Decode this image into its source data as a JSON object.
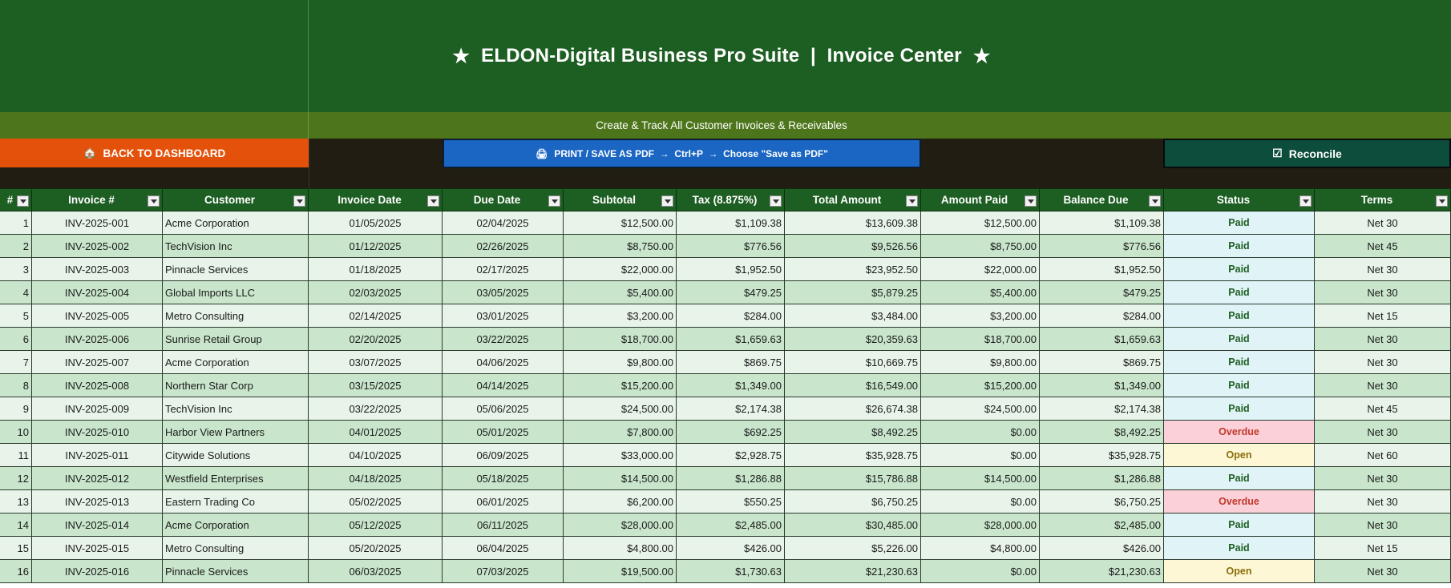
{
  "header": {
    "title": "ELDON-Digital Business Pro Suite  |  Invoice Center",
    "star": "★",
    "subtitle": "Create & Track All Customer Invoices & Receivables"
  },
  "buttons": {
    "back": "BACK TO DASHBOARD",
    "back_icon": "🏠",
    "print": "PRINT / SAVE AS PDF  →  Ctrl+P  →  Choose \"Save as PDF\"",
    "print_icon": "🖨",
    "reconcile": "Reconcile",
    "reconcile_icon": "☑"
  },
  "colors": {
    "banner": "#1d5e22",
    "subband": "#4d761c",
    "back_button": "#e4510a",
    "print_button": "#1a66c2",
    "reconcile_button": "#0d4d3c",
    "status_paid": "#1d5e22",
    "status_overdue": "#c0392b",
    "status_open": "#8a6d08"
  },
  "table": {
    "columns": [
      "#",
      "Invoice #",
      "Customer",
      "Invoice Date",
      "Due Date",
      "Subtotal",
      "Tax (8.875%)",
      "Total Amount",
      "Amount Paid",
      "Balance Due",
      "Status",
      "Terms"
    ],
    "rows": [
      [
        "1",
        "INV-2025-001",
        "Acme Corporation",
        "01/05/2025",
        "02/04/2025",
        "$12,500.00",
        "$1,109.38",
        "$13,609.38",
        "$12,500.00",
        "$1,109.38",
        "Paid",
        "Net 30"
      ],
      [
        "2",
        "INV-2025-002",
        "TechVision Inc",
        "01/12/2025",
        "02/26/2025",
        "$8,750.00",
        "$776.56",
        "$9,526.56",
        "$8,750.00",
        "$776.56",
        "Paid",
        "Net 45"
      ],
      [
        "3",
        "INV-2025-003",
        "Pinnacle Services",
        "01/18/2025",
        "02/17/2025",
        "$22,000.00",
        "$1,952.50",
        "$23,952.50",
        "$22,000.00",
        "$1,952.50",
        "Paid",
        "Net 30"
      ],
      [
        "4",
        "INV-2025-004",
        "Global Imports LLC",
        "02/03/2025",
        "03/05/2025",
        "$5,400.00",
        "$479.25",
        "$5,879.25",
        "$5,400.00",
        "$479.25",
        "Paid",
        "Net 30"
      ],
      [
        "5",
        "INV-2025-005",
        "Metro Consulting",
        "02/14/2025",
        "03/01/2025",
        "$3,200.00",
        "$284.00",
        "$3,484.00",
        "$3,200.00",
        "$284.00",
        "Paid",
        "Net 15"
      ],
      [
        "6",
        "INV-2025-006",
        "Sunrise Retail Group",
        "02/20/2025",
        "03/22/2025",
        "$18,700.00",
        "$1,659.63",
        "$20,359.63",
        "$18,700.00",
        "$1,659.63",
        "Paid",
        "Net 30"
      ],
      [
        "7",
        "INV-2025-007",
        "Acme Corporation",
        "03/07/2025",
        "04/06/2025",
        "$9,800.00",
        "$869.75",
        "$10,669.75",
        "$9,800.00",
        "$869.75",
        "Paid",
        "Net 30"
      ],
      [
        "8",
        "INV-2025-008",
        "Northern Star Corp",
        "03/15/2025",
        "04/14/2025",
        "$15,200.00",
        "$1,349.00",
        "$16,549.00",
        "$15,200.00",
        "$1,349.00",
        "Paid",
        "Net 30"
      ],
      [
        "9",
        "INV-2025-009",
        "TechVision Inc",
        "03/22/2025",
        "05/06/2025",
        "$24,500.00",
        "$2,174.38",
        "$26,674.38",
        "$24,500.00",
        "$2,174.38",
        "Paid",
        "Net 45"
      ],
      [
        "10",
        "INV-2025-010",
        "Harbor View Partners",
        "04/01/2025",
        "05/01/2025",
        "$7,800.00",
        "$692.25",
        "$8,492.25",
        "$0.00",
        "$8,492.25",
        "Overdue",
        "Net 30"
      ],
      [
        "11",
        "INV-2025-011",
        "Citywide Solutions",
        "04/10/2025",
        "06/09/2025",
        "$33,000.00",
        "$2,928.75",
        "$35,928.75",
        "$0.00",
        "$35,928.75",
        "Open",
        "Net 60"
      ],
      [
        "12",
        "INV-2025-012",
        "Westfield Enterprises",
        "04/18/2025",
        "05/18/2025",
        "$14,500.00",
        "$1,286.88",
        "$15,786.88",
        "$14,500.00",
        "$1,286.88",
        "Paid",
        "Net 30"
      ],
      [
        "13",
        "INV-2025-013",
        "Eastern Trading Co",
        "05/02/2025",
        "06/01/2025",
        "$6,200.00",
        "$550.25",
        "$6,750.25",
        "$0.00",
        "$6,750.25",
        "Overdue",
        "Net 30"
      ],
      [
        "14",
        "INV-2025-014",
        "Acme Corporation",
        "05/12/2025",
        "06/11/2025",
        "$28,000.00",
        "$2,485.00",
        "$30,485.00",
        "$28,000.00",
        "$2,485.00",
        "Paid",
        "Net 30"
      ],
      [
        "15",
        "INV-2025-015",
        "Metro Consulting",
        "05/20/2025",
        "06/04/2025",
        "$4,800.00",
        "$426.00",
        "$5,226.00",
        "$4,800.00",
        "$426.00",
        "Paid",
        "Net 15"
      ],
      [
        "16",
        "INV-2025-016",
        "Pinnacle Services",
        "06/03/2025",
        "07/03/2025",
        "$19,500.00",
        "$1,730.63",
        "$21,230.63",
        "$0.00",
        "$21,230.63",
        "Open",
        "Net 30"
      ]
    ]
  }
}
